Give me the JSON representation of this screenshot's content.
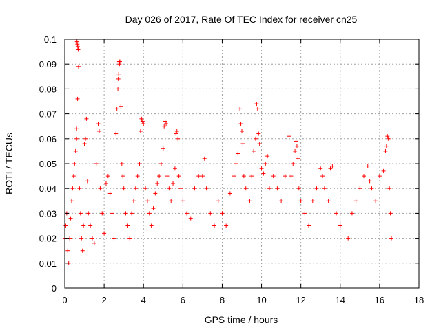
{
  "chart_data": {
    "type": "scatter",
    "title": "Day 026 of 2017, Rate Of TEC Index for receiver cn25",
    "xlabel": "GPS time / hours",
    "ylabel": "ROTI / TECUs",
    "xlim": [
      0,
      18
    ],
    "ylim": [
      0,
      0.1
    ],
    "xticks": [
      0,
      2,
      4,
      6,
      8,
      10,
      12,
      14,
      16,
      18
    ],
    "yticks": [
      0,
      0.01,
      0.02,
      0.03,
      0.04,
      0.05,
      0.06,
      0.07,
      0.08,
      0.09,
      0.1
    ],
    "xtick_labels": [
      "0",
      "2",
      "4",
      "6",
      "8",
      "10",
      "12",
      "14",
      "16",
      "18"
    ],
    "ytick_labels": [
      "0",
      "0.01",
      "0.02",
      "0.03",
      "0.04",
      "0.05",
      "0.06",
      "0.07",
      "0.08",
      "0.09",
      "0.1"
    ],
    "grid": true,
    "marker": "+",
    "series": [
      {
        "name": "ROTI",
        "color": "#ff0000",
        "points": [
          [
            0.0,
            0.02
          ],
          [
            0.05,
            0.025
          ],
          [
            0.1,
            0.03
          ],
          [
            0.15,
            0.015
          ],
          [
            0.2,
            0.01
          ],
          [
            0.25,
            0.02
          ],
          [
            0.3,
            0.028
          ],
          [
            0.35,
            0.035
          ],
          [
            0.4,
            0.04
          ],
          [
            0.45,
            0.045
          ],
          [
            0.5,
            0.05
          ],
          [
            0.55,
            0.055
          ],
          [
            0.6,
            0.06
          ],
          [
            0.62,
            0.099
          ],
          [
            0.64,
            0.098
          ],
          [
            0.66,
            0.097
          ],
          [
            0.68,
            0.096
          ],
          [
            0.7,
            0.089
          ],
          [
            0.65,
            0.076
          ],
          [
            0.6,
            0.064
          ],
          [
            0.75,
            0.04
          ],
          [
            0.8,
            0.03
          ],
          [
            0.85,
            0.02
          ],
          [
            0.9,
            0.015
          ],
          [
            0.95,
            0.025
          ],
          [
            1.0,
            0.058
          ],
          [
            1.05,
            0.06
          ],
          [
            1.1,
            0.068
          ],
          [
            1.15,
            0.043
          ],
          [
            1.2,
            0.03
          ],
          [
            1.3,
            0.025
          ],
          [
            1.4,
            0.02
          ],
          [
            1.5,
            0.018
          ],
          [
            1.6,
            0.05
          ],
          [
            1.7,
            0.066
          ],
          [
            1.75,
            0.063
          ],
          [
            1.8,
            0.04
          ],
          [
            1.9,
            0.03
          ],
          [
            2.0,
            0.022
          ],
          [
            2.1,
            0.042
          ],
          [
            2.2,
            0.045
          ],
          [
            2.3,
            0.038
          ],
          [
            2.4,
            0.03
          ],
          [
            2.5,
            0.02
          ],
          [
            2.6,
            0.062
          ],
          [
            2.65,
            0.072
          ],
          [
            2.7,
            0.08
          ],
          [
            2.72,
            0.084
          ],
          [
            2.74,
            0.086
          ],
          [
            2.76,
            0.091
          ],
          [
            2.78,
            0.09
          ],
          [
            2.8,
            0.091
          ],
          [
            2.85,
            0.073
          ],
          [
            2.9,
            0.05
          ],
          [
            2.95,
            0.045
          ],
          [
            3.0,
            0.04
          ],
          [
            3.1,
            0.03
          ],
          [
            3.2,
            0.025
          ],
          [
            3.3,
            0.02
          ],
          [
            3.4,
            0.03
          ],
          [
            3.5,
            0.035
          ],
          [
            3.6,
            0.04
          ],
          [
            3.7,
            0.045
          ],
          [
            3.8,
            0.05
          ],
          [
            3.85,
            0.063
          ],
          [
            3.9,
            0.068
          ],
          [
            3.95,
            0.067
          ],
          [
            4.0,
            0.066
          ],
          [
            4.1,
            0.04
          ],
          [
            4.2,
            0.035
          ],
          [
            4.3,
            0.03
          ],
          [
            4.4,
            0.025
          ],
          [
            4.5,
            0.032
          ],
          [
            4.6,
            0.038
          ],
          [
            4.7,
            0.042
          ],
          [
            4.8,
            0.045
          ],
          [
            4.9,
            0.05
          ],
          [
            5.0,
            0.056
          ],
          [
            5.05,
            0.065
          ],
          [
            5.1,
            0.067
          ],
          [
            5.15,
            0.066
          ],
          [
            5.2,
            0.045
          ],
          [
            5.3,
            0.04
          ],
          [
            5.4,
            0.035
          ],
          [
            5.5,
            0.042
          ],
          [
            5.6,
            0.048
          ],
          [
            5.65,
            0.062
          ],
          [
            5.7,
            0.063
          ],
          [
            5.75,
            0.06
          ],
          [
            5.8,
            0.045
          ],
          [
            5.9,
            0.04
          ],
          [
            6.0,
            0.035
          ],
          [
            6.2,
            0.03
          ],
          [
            6.4,
            0.028
          ],
          [
            6.6,
            0.04
          ],
          [
            6.8,
            0.045
          ],
          [
            7.0,
            0.045
          ],
          [
            7.1,
            0.052
          ],
          [
            7.2,
            0.04
          ],
          [
            7.4,
            0.03
          ],
          [
            7.6,
            0.025
          ],
          [
            7.8,
            0.035
          ],
          [
            8.0,
            0.03
          ],
          [
            8.2,
            0.025
          ],
          [
            8.4,
            0.038
          ],
          [
            8.6,
            0.045
          ],
          [
            8.7,
            0.05
          ],
          [
            8.8,
            0.054
          ],
          [
            8.9,
            0.072
          ],
          [
            8.95,
            0.066
          ],
          [
            9.0,
            0.063
          ],
          [
            9.05,
            0.058
          ],
          [
            9.1,
            0.045
          ],
          [
            9.2,
            0.04
          ],
          [
            9.4,
            0.035
          ],
          [
            9.5,
            0.045
          ],
          [
            9.6,
            0.055
          ],
          [
            9.7,
            0.06
          ],
          [
            9.75,
            0.074
          ],
          [
            9.8,
            0.072
          ],
          [
            9.85,
            0.062
          ],
          [
            9.9,
            0.058
          ],
          [
            10.0,
            0.048
          ],
          [
            10.1,
            0.046
          ],
          [
            10.2,
            0.05
          ],
          [
            10.3,
            0.053
          ],
          [
            10.4,
            0.04
          ],
          [
            10.6,
            0.045
          ],
          [
            10.8,
            0.04
          ],
          [
            11.0,
            0.035
          ],
          [
            11.2,
            0.045
          ],
          [
            11.4,
            0.061
          ],
          [
            11.5,
            0.045
          ],
          [
            11.6,
            0.05
          ],
          [
            11.7,
            0.055
          ],
          [
            11.75,
            0.059
          ],
          [
            11.8,
            0.057
          ],
          [
            11.85,
            0.052
          ],
          [
            11.9,
            0.04
          ],
          [
            12.0,
            0.035
          ],
          [
            12.2,
            0.03
          ],
          [
            12.4,
            0.025
          ],
          [
            12.6,
            0.035
          ],
          [
            12.8,
            0.04
          ],
          [
            13.0,
            0.048
          ],
          [
            13.1,
            0.045
          ],
          [
            13.2,
            0.04
          ],
          [
            13.4,
            0.035
          ],
          [
            13.5,
            0.048
          ],
          [
            13.6,
            0.049
          ],
          [
            13.8,
            0.03
          ],
          [
            14.0,
            0.025
          ],
          [
            14.4,
            0.02
          ],
          [
            14.6,
            0.03
          ],
          [
            14.8,
            0.035
          ],
          [
            15.0,
            0.04
          ],
          [
            15.2,
            0.045
          ],
          [
            15.4,
            0.049
          ],
          [
            15.5,
            0.043
          ],
          [
            15.6,
            0.04
          ],
          [
            15.8,
            0.035
          ],
          [
            16.0,
            0.045
          ],
          [
            16.2,
            0.047
          ],
          [
            16.3,
            0.055
          ],
          [
            16.35,
            0.057
          ],
          [
            16.4,
            0.061
          ],
          [
            16.45,
            0.06
          ],
          [
            16.5,
            0.04
          ],
          [
            16.55,
            0.03
          ],
          [
            16.6,
            0.02
          ]
        ]
      }
    ]
  }
}
